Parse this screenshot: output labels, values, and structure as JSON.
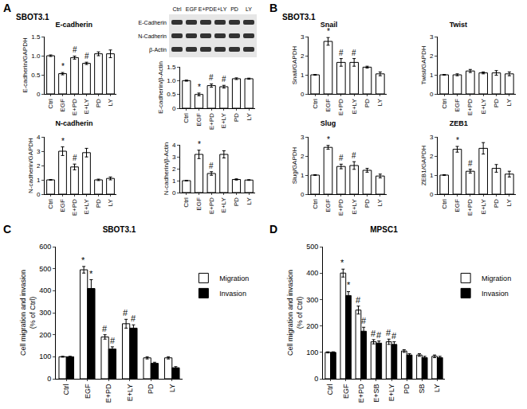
{
  "figure": {
    "panels": [
      {
        "label": "A",
        "subtitle": "SBOT3.1"
      },
      {
        "label": "B",
        "subtitle": "SBOT3.1"
      },
      {
        "label": "C"
      },
      {
        "label": "D"
      }
    ]
  },
  "blot": {
    "lanes": [
      "Ctrl",
      "EGF",
      "E+PD",
      "E+LY",
      "PD",
      "LY"
    ],
    "rows": [
      "E-Cadherin",
      "N-Cadherin",
      "β-Actin"
    ]
  },
  "chart_data": [
    {
      "type": "bar",
      "title": "E-cadherin",
      "y_label": "E-cadherin/GAPDH",
      "categories": [
        "Ctrl",
        "EGF",
        "E+PD",
        "E+LY",
        "PD",
        "LY"
      ],
      "values": [
        1.0,
        0.53,
        0.95,
        0.8,
        1.05,
        1.05
      ],
      "errors": [
        0.02,
        0.03,
        0.04,
        0.03,
        0.05,
        0.1
      ],
      "color": "#ffffff",
      "ylim": [
        0,
        1.5
      ],
      "yticks": [
        0,
        0.5,
        {
          "value": 1,
          "label": "1.0"
        },
        1.5
      ],
      "annotations": [
        {
          "text": "*",
          "category": "EGF"
        },
        {
          "text": "#",
          "category": "E+PD"
        },
        {
          "text": "#",
          "category": "E+LY"
        }
      ]
    },
    {
      "type": "bar",
      "title": "N-cadherin",
      "y_label": "N-cadherin/GAPDH",
      "categories": [
        "Ctrl",
        "EGF",
        "E+PD",
        "E+LY",
        "PD",
        "LY"
      ],
      "values": [
        1.0,
        3.0,
        1.9,
        2.9,
        1.0,
        1.1
      ],
      "errors": [
        0.02,
        0.3,
        0.2,
        0.3,
        0.05,
        0.1
      ],
      "color": "#ffffff",
      "ylim": [
        0,
        4
      ],
      "yticks": [
        0,
        1,
        2,
        3,
        4
      ],
      "annotations": [
        {
          "text": "*",
          "category": "EGF"
        },
        {
          "text": "#",
          "category": "E+PD"
        }
      ]
    },
    {
      "type": "bar",
      "title": "E-cadherin",
      "y_label": "E-cadherin/β-Actin",
      "categories": [
        "Ctrl",
        "EGF",
        "E+PD",
        "E+LY",
        "PD",
        "LY"
      ],
      "values": [
        1.0,
        0.5,
        0.82,
        0.78,
        1.07,
        1.07
      ],
      "errors": [
        0.02,
        0.05,
        0.06,
        0.05,
        0.03,
        0.02
      ],
      "color": "#ffffff",
      "ylim": [
        0,
        1.5
      ],
      "yticks": [
        0,
        0.5,
        {
          "value": 1,
          "label": "1.0"
        },
        1.5
      ],
      "annotations": [
        {
          "text": "*",
          "category": "EGF"
        },
        {
          "text": "#",
          "category": "E+PD"
        },
        {
          "text": "#",
          "category": "E+LY"
        }
      ]
    },
    {
      "type": "bar",
      "title": "N-cadherin",
      "y_label": "N-cadherin/β-Actin",
      "categories": [
        "Ctrl",
        "EGF",
        "E+PD",
        "E+LY",
        "PD",
        "LY"
      ],
      "values": [
        1.0,
        3.2,
        1.6,
        3.2,
        1.1,
        1.05
      ],
      "errors": [
        0.02,
        0.35,
        0.15,
        0.3,
        0.05,
        0.03
      ],
      "color": "#ffffff",
      "ylim": [
        0,
        4
      ],
      "yticks": [
        0,
        1,
        2,
        3,
        4
      ],
      "annotations": [
        {
          "text": "*",
          "category": "EGF"
        },
        {
          "text": "#",
          "category": "E+PD"
        }
      ]
    },
    {
      "type": "bar",
      "title": "Snail",
      "y_label": "Snail/GAPDH",
      "categories": [
        "Ctrl",
        "EGF",
        "E+PD",
        "E+LY",
        "PD",
        "LY"
      ],
      "values": [
        1.0,
        2.75,
        1.65,
        1.65,
        1.4,
        1.05
      ],
      "errors": [
        0.02,
        0.2,
        0.2,
        0.2,
        0.05,
        0.1
      ],
      "color": "#ffffff",
      "ylim": [
        0,
        3
      ],
      "yticks": [
        0,
        1,
        2,
        3
      ],
      "annotations": [
        {
          "text": "*",
          "category": "EGF"
        },
        {
          "text": "#",
          "category": "E+PD"
        },
        {
          "text": "#",
          "category": "E+LY"
        }
      ]
    },
    {
      "type": "bar",
      "title": "Twist",
      "y_label": "Twist/GAPDH",
      "categories": [
        "Ctrl",
        "EGF",
        "E+PD",
        "E+LY",
        "PD",
        "LY"
      ],
      "values": [
        1.0,
        1.0,
        1.2,
        1.1,
        1.1,
        1.05
      ],
      "errors": [
        0.02,
        0.05,
        0.08,
        0.05,
        0.12,
        0.1
      ],
      "color": "#ffffff",
      "ylim": [
        0,
        3
      ],
      "yticks": [
        0,
        1,
        2,
        3
      ]
    },
    {
      "type": "bar",
      "title": "Slug",
      "y_label": "Slug/GAPDH",
      "categories": [
        "Ctrl",
        "EGF",
        "E+PD",
        "E+LY",
        "PD",
        "LY"
      ],
      "values": [
        1.0,
        2.45,
        1.45,
        1.5,
        1.25,
        0.95
      ],
      "errors": [
        0.02,
        0.1,
        0.12,
        0.2,
        0.1,
        0.1
      ],
      "color": "#ffffff",
      "ylim": [
        0,
        3
      ],
      "yticks": [
        0,
        1,
        2,
        3
      ],
      "annotations": [
        {
          "text": "*",
          "category": "EGF"
        },
        {
          "text": "#",
          "category": "E+PD"
        },
        {
          "text": "#",
          "category": "E+LY"
        }
      ]
    },
    {
      "type": "bar",
      "title": "ZEB1",
      "y_label": "ZEB1/GAPDH",
      "categories": [
        "Ctrl",
        "EGF",
        "E+PD",
        "E+LY",
        "PD",
        "LY"
      ],
      "values": [
        1.0,
        2.35,
        1.2,
        2.4,
        1.35,
        1.05
      ],
      "errors": [
        0.02,
        0.15,
        0.1,
        0.3,
        0.2,
        0.15
      ],
      "color": "#ffffff",
      "ylim": [
        0,
        3
      ],
      "yticks": [
        0,
        1,
        2,
        3
      ],
      "annotations": [
        {
          "text": "*",
          "category": "EGF"
        },
        {
          "text": "#",
          "category": "E+PD"
        }
      ]
    },
    {
      "type": "bar",
      "title": "SBOT3.1",
      "y_label": [
        "Cell migration and invasion",
        "(% of Ctrl)"
      ],
      "categories": [
        "Ctrl",
        "EGF",
        "E+PD",
        "E+LY",
        "PD",
        "LY"
      ],
      "series": [
        {
          "name": "Migration",
          "color": "#ffffff",
          "values": [
            100,
            495,
            190,
            250,
            95,
            95
          ],
          "errors": [
            2,
            15,
            10,
            20,
            5,
            5
          ]
        },
        {
          "name": "Invasion",
          "color": "#000000",
          "values": [
            100,
            410,
            135,
            230,
            70,
            50
          ],
          "errors": [
            2,
            40,
            10,
            15,
            5,
            5
          ]
        }
      ],
      "ylim": [
        0,
        600
      ],
      "yticks": [
        0,
        100,
        200,
        300,
        400,
        500,
        600
      ],
      "legend": "right",
      "annotations": [
        {
          "text": "*",
          "category": "EGF",
          "series": "Migration"
        },
        {
          "text": "*",
          "category": "EGF",
          "series": "Invasion"
        },
        {
          "text": "#",
          "category": "E+PD",
          "series": "Migration"
        },
        {
          "text": "#",
          "category": "E+PD",
          "series": "Invasion"
        },
        {
          "text": "#",
          "category": "E+LY",
          "series": "Migration"
        },
        {
          "text": "#",
          "category": "E+LY",
          "series": "Invasion"
        }
      ]
    },
    {
      "type": "bar",
      "title": "MPSC1",
      "y_label": [
        "Cell migration and invasion",
        "(% of Ctrl)"
      ],
      "categories": [
        "Ctrl",
        "EGF",
        "E+PD",
        "E+SB",
        "E+LY",
        "PD",
        "SB",
        "LY"
      ],
      "series": [
        {
          "name": "Migration",
          "color": "#ffffff",
          "values": [
            100,
            400,
            260,
            140,
            140,
            105,
            90,
            85
          ],
          "errors": [
            2,
            15,
            15,
            8,
            10,
            5,
            5,
            5
          ]
        },
        {
          "name": "Invasion",
          "color": "#000000",
          "values": [
            100,
            315,
            180,
            135,
            130,
            90,
            80,
            80
          ],
          "errors": [
            2,
            15,
            15,
            8,
            10,
            5,
            5,
            5
          ]
        }
      ],
      "ylim": [
        0,
        500
      ],
      "yticks": [
        0,
        100,
        200,
        300,
        400,
        500
      ],
      "legend": "right",
      "annotations": [
        {
          "text": "*",
          "category": "EGF",
          "series": "Migration"
        },
        {
          "text": "*",
          "category": "EGF",
          "series": "Invasion"
        },
        {
          "text": "#",
          "category": "E+PD",
          "series": "Migration"
        },
        {
          "text": "#",
          "category": "E+PD",
          "series": "Invasion"
        },
        {
          "text": "#",
          "category": "E+SB",
          "series": "Migration"
        },
        {
          "text": "#",
          "category": "E+SB",
          "series": "Invasion"
        },
        {
          "text": "#",
          "category": "E+LY",
          "series": "Migration"
        },
        {
          "text": "#",
          "category": "E+LY",
          "series": "Invasion"
        }
      ]
    }
  ]
}
